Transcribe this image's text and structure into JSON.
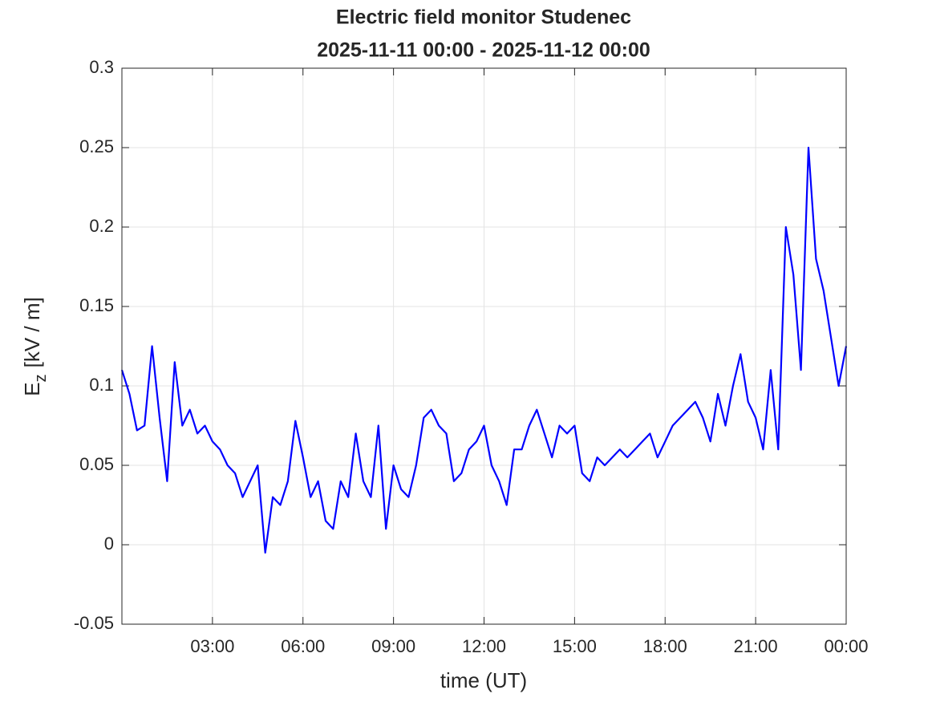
{
  "chart_data": {
    "type": "line",
    "title": "Electric field monitor Studenec",
    "subtitle": "2025-11-11 00:00 - 2025-11-12 00:00",
    "xlabel": "time (UT)",
    "ylabel": {
      "base": "E",
      "sub": "z",
      "unit": "[kV / m]"
    },
    "grid": true,
    "xlim": [
      0,
      24
    ],
    "xticks": [
      {
        "value": 3,
        "label": "03:00"
      },
      {
        "value": 6,
        "label": "06:00"
      },
      {
        "value": 9,
        "label": "09:00"
      },
      {
        "value": 12,
        "label": "12:00"
      },
      {
        "value": 15,
        "label": "15:00"
      },
      {
        "value": 18,
        "label": "18:00"
      },
      {
        "value": 21,
        "label": "21:00"
      },
      {
        "value": 24,
        "label": "00:00"
      }
    ],
    "ylim": [
      -0.05,
      0.3
    ],
    "yticks": [
      -0.05,
      0,
      0.05,
      0.1,
      0.15,
      0.2,
      0.25,
      0.3
    ],
    "x": [
      0,
      0.25,
      0.5,
      0.75,
      1,
      1.25,
      1.5,
      1.75,
      2,
      2.25,
      2.5,
      2.75,
      3,
      3.25,
      3.5,
      3.75,
      4,
      4.25,
      4.5,
      4.75,
      5,
      5.25,
      5.5,
      5.75,
      6,
      6.25,
      6.5,
      6.75,
      7,
      7.25,
      7.5,
      7.75,
      8,
      8.25,
      8.5,
      8.75,
      9,
      9.25,
      9.5,
      9.75,
      10,
      10.25,
      10.5,
      10.75,
      11,
      11.25,
      11.5,
      11.75,
      12,
      12.25,
      12.5,
      12.75,
      13,
      13.25,
      13.5,
      13.75,
      14,
      14.25,
      14.5,
      14.75,
      15,
      15.25,
      15.5,
      15.75,
      16,
      16.25,
      16.5,
      16.75,
      17,
      17.25,
      17.5,
      17.75,
      18,
      18.25,
      18.5,
      18.75,
      19,
      19.25,
      19.5,
      19.75,
      20,
      20.25,
      20.5,
      20.75,
      21,
      21.25,
      21.5,
      21.75,
      22,
      22.25,
      22.5,
      22.75,
      23,
      23.25,
      23.5,
      23.75,
      24
    ],
    "series": [
      {
        "name": "Ez",
        "color": "#0000ff",
        "values": [
          0.11,
          0.095,
          0.072,
          0.075,
          0.125,
          0.08,
          0.04,
          0.115,
          0.075,
          0.085,
          0.07,
          0.075,
          0.065,
          0.06,
          0.05,
          0.045,
          0.03,
          0.04,
          0.05,
          -0.005,
          0.03,
          0.025,
          0.04,
          0.078,
          0.055,
          0.03,
          0.04,
          0.015,
          0.01,
          0.04,
          0.03,
          0.07,
          0.04,
          0.03,
          0.075,
          0.01,
          0.05,
          0.035,
          0.03,
          0.05,
          0.08,
          0.085,
          0.075,
          0.07,
          0.04,
          0.045,
          0.06,
          0.065,
          0.075,
          0.05,
          0.04,
          0.025,
          0.06,
          0.06,
          0.075,
          0.085,
          0.07,
          0.055,
          0.075,
          0.07,
          0.075,
          0.045,
          0.04,
          0.055,
          0.05,
          0.055,
          0.06,
          0.055,
          0.06,
          0.065,
          0.07,
          0.055,
          0.065,
          0.075,
          0.08,
          0.085,
          0.09,
          0.08,
          0.065,
          0.095,
          0.075,
          0.1,
          0.12,
          0.09,
          0.08,
          0.06,
          0.11,
          0.06,
          0.2,
          0.17,
          0.11,
          0.25,
          0.18,
          0.16,
          0.13,
          0.1,
          0.125
        ]
      }
    ]
  }
}
